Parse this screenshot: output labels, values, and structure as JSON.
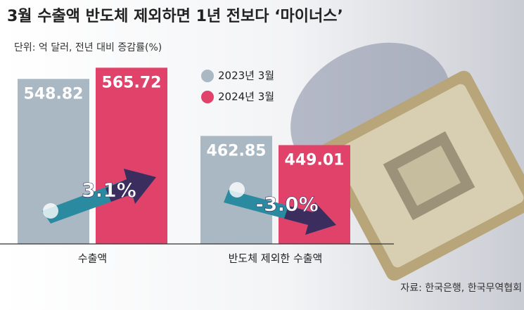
{
  "chart_data": {
    "type": "bar",
    "title": "3월 수출액 반도체 제외하면 1년 전보다 ‘마이너스’",
    "subtitle": "단위: 억 달러, 전년 대비 증감률(%)",
    "categories": [
      "수출액",
      "반도체 제외한 수출액"
    ],
    "series": [
      {
        "name": "2023년 3월",
        "color": "#aab8c4",
        "values": [
          548.82,
          462.85
        ]
      },
      {
        "name": "2024년 3월",
        "color": "#e0426a",
        "values": [
          565.72,
          449.01
        ]
      }
    ],
    "ylim": [
      300,
      600
    ],
    "annotations": [
      "3.1%",
      "-3.0%"
    ],
    "source": "자료: 한국은행, 한국무역협회"
  }
}
